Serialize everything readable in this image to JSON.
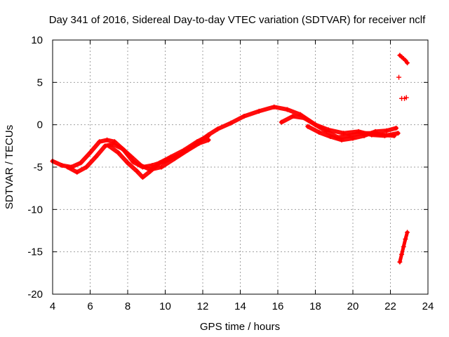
{
  "chart_data": {
    "type": "scatter",
    "title": "Day 341 of 2016, Sidereal Day-to-day VTEC variation (SDTVAR) for receiver nclf",
    "xlabel": "GPS time / hours",
    "ylabel": "SDTVAR / TECUs",
    "xlim": [
      4,
      24
    ],
    "ylim": [
      -20,
      10
    ],
    "xticks": [
      4,
      6,
      8,
      10,
      12,
      14,
      16,
      18,
      20,
      22,
      24
    ],
    "xtick_labels": [
      "4",
      "6",
      "8",
      "10",
      "12",
      "14",
      "16",
      "18",
      "20",
      "22",
      "24"
    ],
    "yticks": [
      10,
      5,
      0,
      -5,
      -10,
      -15,
      -20
    ],
    "ytick_labels": [
      "10",
      "5",
      "0",
      "-5",
      "-10",
      "-15",
      "-20"
    ],
    "grid": true,
    "marker": "+",
    "color": "#ff0000",
    "series": [
      {
        "name": "track-a",
        "x": [
          4.0,
          4.5,
          5.0,
          5.5,
          6.0,
          6.5,
          6.9,
          7.3,
          7.8,
          8.3,
          8.8,
          9.3,
          10.0,
          10.8,
          11.5,
          12.3,
          12.8,
          13.5,
          14.2,
          15.0,
          15.8,
          16.5,
          17.2,
          18.0,
          18.7,
          19.5,
          20.3,
          21.0,
          21.7,
          22.4
        ],
        "y": [
          -4.3,
          -4.8,
          -5.0,
          -4.5,
          -3.3,
          -2.0,
          -1.8,
          -2.0,
          -3.0,
          -4.4,
          -5.0,
          -4.8,
          -4.3,
          -3.5,
          -2.5,
          -1.2,
          -0.5,
          0.2,
          1.0,
          1.6,
          2.1,
          1.8,
          1.2,
          0.0,
          -0.6,
          -1.0,
          -0.8,
          -1.2,
          -1.3,
          -1.0
        ]
      },
      {
        "name": "track-b",
        "x": [
          4.8,
          5.3,
          5.8,
          6.3,
          6.8,
          7.2,
          7.7,
          8.2,
          8.7,
          9.2,
          9.8,
          10.5,
          11.2,
          11.8,
          12.3
        ],
        "y": [
          -5.0,
          -5.6,
          -5.0,
          -3.8,
          -2.5,
          -2.3,
          -2.8,
          -3.8,
          -4.8,
          -5.3,
          -5.0,
          -4.0,
          -3.0,
          -2.2,
          -1.8
        ]
      },
      {
        "name": "track-c",
        "x": [
          7.0,
          7.5,
          8.0,
          8.5,
          8.8,
          9.2,
          9.7,
          10.3,
          11.0,
          11.7,
          12.3
        ],
        "y": [
          -2.5,
          -3.3,
          -4.5,
          -5.5,
          -6.2,
          -5.5,
          -4.5,
          -3.8,
          -3.0,
          -2.0,
          -1.3
        ]
      },
      {
        "name": "track-d",
        "x": [
          16.2,
          16.8,
          17.4,
          18.0,
          18.6,
          19.2,
          19.8,
          20.4,
          21.0,
          21.6,
          22.2
        ],
        "y": [
          0.3,
          1.0,
          0.8,
          0.0,
          -0.8,
          -1.5,
          -1.3,
          -1.0,
          -1.0,
          -1.2,
          -1.3
        ]
      },
      {
        "name": "track-e",
        "x": [
          17.6,
          18.2,
          18.8,
          19.4,
          20.0,
          20.6,
          21.2,
          21.8,
          22.3
        ],
        "y": [
          -0.2,
          -0.9,
          -1.4,
          -1.8,
          -1.6,
          -1.3,
          -0.8,
          -0.7,
          -0.4
        ]
      },
      {
        "name": "late-cluster-upper",
        "x": [
          22.5,
          22.6,
          22.7,
          22.8,
          22.9
        ],
        "y": [
          8.2,
          8.0,
          7.8,
          7.6,
          7.3
        ]
      },
      {
        "name": "late-cluster-mid",
        "x": [
          22.45,
          22.6,
          22.75,
          22.85
        ],
        "y": [
          5.6,
          3.1,
          3.1,
          3.2
        ]
      },
      {
        "name": "late-cluster-lower",
        "x": [
          22.5,
          22.6,
          22.7,
          22.8,
          22.9
        ],
        "y": [
          -16.2,
          -15.3,
          -14.4,
          -13.5,
          -12.7
        ]
      }
    ]
  }
}
